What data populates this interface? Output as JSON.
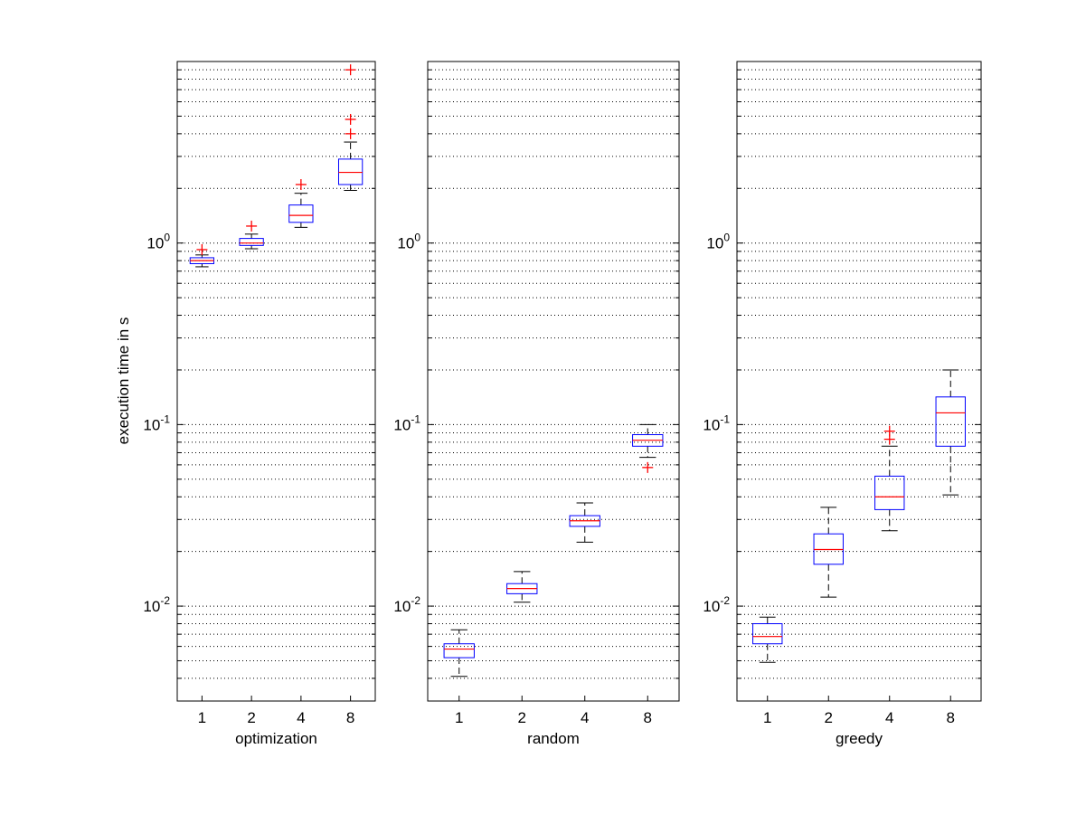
{
  "figure": {
    "ylabel": "execution time in s",
    "ylim": [
      0.003,
      10
    ],
    "yscale": "log",
    "grid": "y-major-and-minor-dotted",
    "colors": {
      "box": "#0000ff",
      "median": "#ff0000",
      "whisker": "#000000",
      "outlier": "#ff0000",
      "grid": "#000000"
    },
    "y_ticks": [
      {
        "value": 0.01,
        "base": "10",
        "exp": "-2"
      },
      {
        "value": 0.1,
        "base": "10",
        "exp": "-1"
      },
      {
        "value": 1,
        "base": "10",
        "exp": "0"
      }
    ]
  },
  "chart_data": [
    {
      "type": "box",
      "xlabel": "optimization",
      "categories": [
        "1",
        "2",
        "4",
        "8"
      ],
      "boxes": [
        {
          "whisker_low": 0.74,
          "q1": 0.77,
          "median": 0.8,
          "q3": 0.83,
          "whisker_high": 0.86,
          "outliers": [
            0.92
          ]
        },
        {
          "whisker_low": 0.93,
          "q1": 0.97,
          "median": 1.0,
          "q3": 1.06,
          "whisker_high": 1.12,
          "outliers": [
            1.24
          ]
        },
        {
          "whisker_low": 1.22,
          "q1": 1.3,
          "median": 1.42,
          "q3": 1.62,
          "whisker_high": 1.88,
          "outliers": [
            2.1
          ]
        },
        {
          "whisker_low": 1.95,
          "q1": 2.1,
          "median": 2.45,
          "q3": 2.9,
          "whisker_high": 3.6,
          "outliers": [
            4.0,
            4.8,
            9.0
          ]
        }
      ]
    },
    {
      "type": "box",
      "xlabel": "random",
      "categories": [
        "1",
        "2",
        "4",
        "8"
      ],
      "boxes": [
        {
          "whisker_low": 0.0041,
          "q1": 0.0052,
          "median": 0.0058,
          "q3": 0.0062,
          "whisker_high": 0.0074,
          "outliers": []
        },
        {
          "whisker_low": 0.0105,
          "q1": 0.0117,
          "median": 0.0125,
          "q3": 0.0133,
          "whisker_high": 0.0155,
          "outliers": []
        },
        {
          "whisker_low": 0.0225,
          "q1": 0.0275,
          "median": 0.0295,
          "q3": 0.0315,
          "whisker_high": 0.037,
          "outliers": []
        },
        {
          "whisker_low": 0.066,
          "q1": 0.076,
          "median": 0.082,
          "q3": 0.088,
          "whisker_high": 0.1,
          "outliers": [
            0.058
          ]
        }
      ]
    },
    {
      "type": "box",
      "xlabel": "greedy",
      "categories": [
        "1",
        "2",
        "4",
        "8"
      ],
      "boxes": [
        {
          "whisker_low": 0.0049,
          "q1": 0.0062,
          "median": 0.0068,
          "q3": 0.008,
          "whisker_high": 0.0087,
          "outliers": []
        },
        {
          "whisker_low": 0.0112,
          "q1": 0.017,
          "median": 0.0205,
          "q3": 0.025,
          "whisker_high": 0.035,
          "outliers": []
        },
        {
          "whisker_low": 0.026,
          "q1": 0.034,
          "median": 0.04,
          "q3": 0.052,
          "whisker_high": 0.076,
          "outliers": [
            0.083,
            0.092
          ]
        },
        {
          "whisker_low": 0.041,
          "q1": 0.076,
          "median": 0.116,
          "q3": 0.142,
          "whisker_high": 0.2,
          "outliers": []
        }
      ]
    }
  ]
}
